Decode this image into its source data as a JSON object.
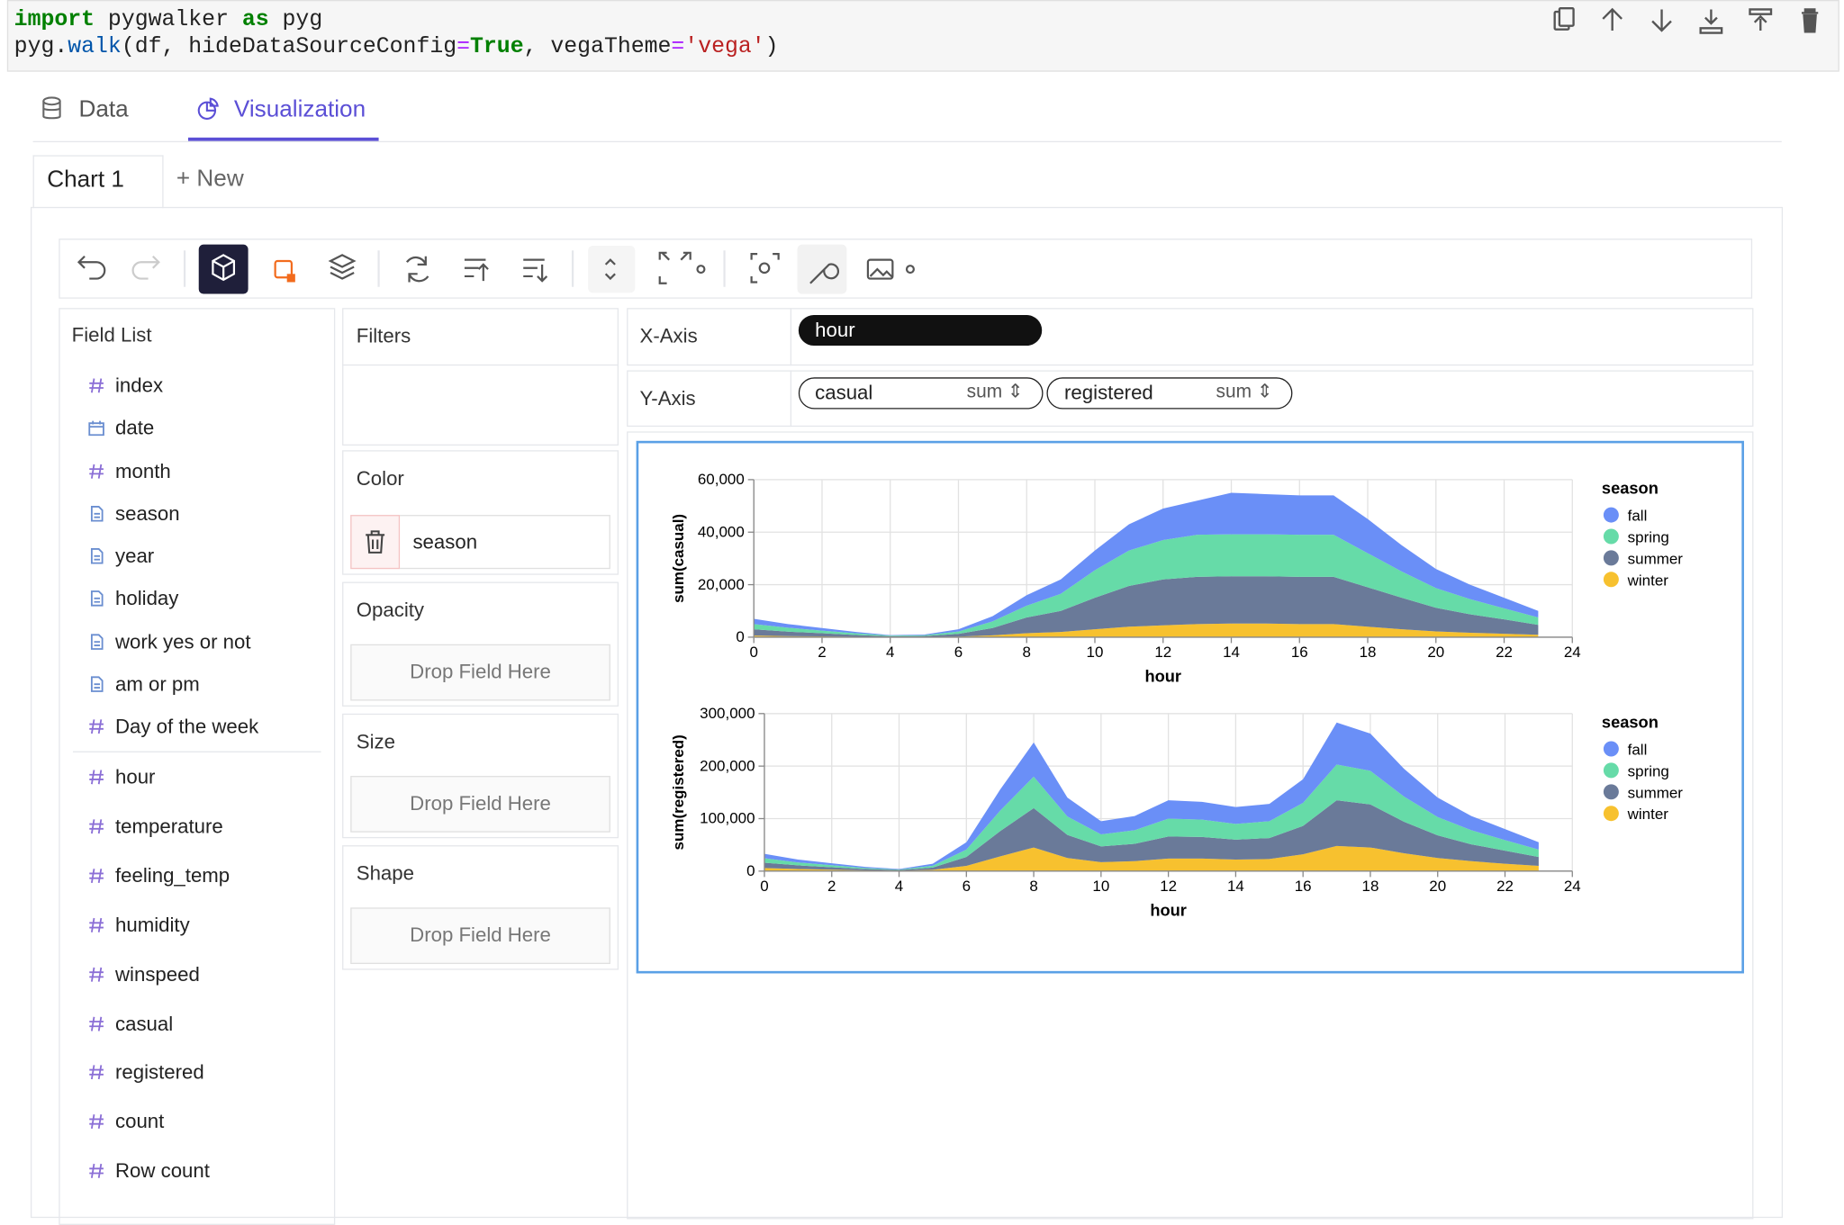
{
  "code": {
    "lines": [
      [
        "import",
        " pygwalker ",
        "as",
        " pyg"
      ],
      [
        "pyg.",
        "walk",
        "(df, hideDataSourceConfig",
        "=",
        "True",
        ", vegaTheme",
        "=",
        "'vega'",
        ")"
      ]
    ]
  },
  "tabs": [
    "Data",
    "Visualization"
  ],
  "chart_tabs": [
    "Chart 1",
    "+ New"
  ],
  "field_list": {
    "title": "Field List",
    "dimensions": [
      "index",
      "date",
      "month",
      "season",
      "year",
      "holiday",
      "work yes or not",
      "am or pm",
      "Day of the week"
    ],
    "measures": [
      "hour",
      "temperature",
      "feeling_temp",
      "humidity",
      "winspeed",
      "casual",
      "registered",
      "count",
      "Row count"
    ]
  },
  "filters": {
    "title": "Filters"
  },
  "encodings": [
    {
      "title": "Color",
      "field": "season"
    },
    {
      "title": "Opacity",
      "placeholder": "Drop Field Here"
    },
    {
      "title": "Size",
      "placeholder": "Drop Field Here"
    },
    {
      "title": "Shape",
      "placeholder": "Drop Field Here"
    }
  ],
  "x_axis": {
    "label": "X-Axis",
    "fields": [
      {
        "name": "hour"
      }
    ]
  },
  "y_axis": {
    "label": "Y-Axis",
    "fields": [
      {
        "name": "casual",
        "agg": "sum"
      },
      {
        "name": "registered",
        "agg": "sum"
      }
    ]
  },
  "chart_data": [
    {
      "type": "area",
      "stacked": true,
      "grid": true,
      "legend": "right",
      "x_label": "hour",
      "y_label": "sum(casual)",
      "legend_title": "season",
      "x": [
        0,
        1,
        2,
        3,
        4,
        5,
        6,
        7,
        8,
        9,
        10,
        11,
        12,
        13,
        14,
        15,
        16,
        17,
        18,
        19,
        20,
        21,
        22,
        23
      ],
      "xlim": [
        0,
        24
      ],
      "xticks": [
        0,
        2,
        4,
        6,
        8,
        10,
        12,
        14,
        16,
        18,
        20,
        22,
        24
      ],
      "ylim": [
        0,
        60000
      ],
      "yticks": [
        0,
        {
          "value": 20000,
          "label": "20,000"
        },
        {
          "value": 40000,
          "label": "40,000"
        },
        {
          "value": 60000,
          "label": "60,000"
        }
      ],
      "series": [
        {
          "name": "fall",
          "color": "#6a8ff7",
          "values": [
            2000,
            1400,
            1000,
            550,
            200,
            270,
            850,
            2000,
            4000,
            5500,
            7500,
            10000,
            12000,
            13000,
            15800,
            15300,
            15000,
            15000,
            13000,
            10000,
            7300,
            5500,
            4000,
            2500
          ]
        },
        {
          "name": "spring",
          "color": "#66dba8",
          "values": [
            2000,
            1500,
            1000,
            600,
            250,
            300,
            900,
            2500,
            4500,
            6500,
            10500,
            13500,
            15000,
            16000,
            16000,
            16000,
            16000,
            16000,
            13000,
            10000,
            7500,
            5800,
            4200,
            2800
          ]
        },
        {
          "name": "summer",
          "color": "#6a7a99",
          "values": [
            2400,
            1700,
            1200,
            700,
            300,
            350,
            1000,
            2800,
            6000,
            8000,
            12000,
            15500,
            17500,
            18000,
            18000,
            18000,
            18000,
            18000,
            15000,
            12000,
            9000,
            7000,
            5500,
            3800
          ]
        },
        {
          "name": "winter",
          "color": "#f7c12f",
          "values": [
            600,
            400,
            300,
            150,
            50,
            80,
            250,
            700,
            1500,
            2000,
            3000,
            4000,
            4500,
            5000,
            5200,
            5200,
            5000,
            5000,
            4000,
            3000,
            2200,
            1700,
            1300,
            900
          ]
        }
      ]
    },
    {
      "type": "area",
      "stacked": true,
      "grid": true,
      "legend": "right",
      "x_label": "hour",
      "y_label": "sum(registered)",
      "legend_title": "season",
      "x": [
        0,
        1,
        2,
        3,
        4,
        5,
        6,
        7,
        8,
        9,
        10,
        11,
        12,
        13,
        14,
        15,
        16,
        17,
        18,
        19,
        20,
        21,
        22,
        23
      ],
      "xlim": [
        0,
        24
      ],
      "xticks": [
        0,
        2,
        4,
        6,
        8,
        10,
        12,
        14,
        16,
        18,
        20,
        22,
        24
      ],
      "ylim": [
        0,
        300000
      ],
      "yticks": [
        0,
        {
          "value": 100000,
          "label": "100,000"
        },
        {
          "value": 200000,
          "label": "200,000"
        },
        {
          "value": 300000,
          "label": "300,000"
        }
      ],
      "series": [
        {
          "name": "fall",
          "color": "#6a8ff7",
          "values": [
            8500,
            5500,
            3800,
            2100,
            1000,
            3700,
            14000,
            40000,
            65000,
            36000,
            25000,
            27000,
            35000,
            34000,
            32000,
            33000,
            45000,
            80000,
            71000,
            53000,
            37000,
            27000,
            21000,
            14000
          ]
        },
        {
          "name": "spring",
          "color": "#66dba8",
          "values": [
            8500,
            5500,
            3800,
            2000,
            1000,
            3500,
            14000,
            39000,
            60000,
            35000,
            23000,
            26000,
            34000,
            33000,
            30000,
            32000,
            44000,
            68000,
            64000,
            48000,
            35000,
            27000,
            20000,
            14000
          ]
        },
        {
          "name": "summer",
          "color": "#6a7a99",
          "values": [
            10000,
            7000,
            4700,
            2500,
            1300,
            4300,
            17000,
            48000,
            75000,
            44000,
            30000,
            33000,
            42000,
            41000,
            38000,
            40000,
            54000,
            87000,
            82000,
            60000,
            43000,
            32000,
            25000,
            17000
          ]
        },
        {
          "name": "winter",
          "color": "#f7c12f",
          "values": [
            6000,
            4000,
            2700,
            1400,
            700,
            2500,
            10000,
            28000,
            45000,
            25000,
            17000,
            19000,
            24000,
            24000,
            22000,
            23000,
            32000,
            48000,
            45000,
            34000,
            25000,
            19000,
            14000,
            10000
          ]
        }
      ]
    }
  ]
}
